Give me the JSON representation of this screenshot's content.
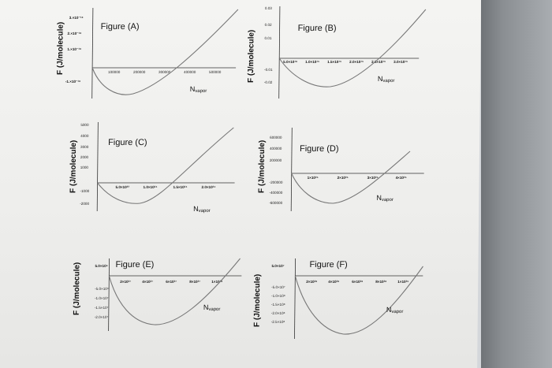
{
  "y_axis_label": "F (J/molecule)",
  "x_axis_label_main": "N",
  "x_axis_label_sub": "vapor",
  "panels": [
    {
      "title": "Figure (A)",
      "y_ticks": [
        "3.×10⁻¹⁸",
        "2.×10⁻¹⁸",
        "1.×10⁻¹⁸",
        "-1.×10⁻¹⁸"
      ],
      "x_ticks": [
        "100000",
        "200000",
        "300000",
        "400000",
        "500000"
      ]
    },
    {
      "title": "Figure (B)",
      "y_ticks": [
        "0.03",
        "0.02",
        "0.01",
        "-0.01",
        "-0.02"
      ],
      "x_ticks": [
        "5.0×10¹⁸",
        "1.0×10¹⁹",
        "1.5×10¹⁹",
        "2.0×10¹⁹",
        "2.5×10¹⁹",
        "3.0×10¹⁹"
      ]
    },
    {
      "title": "Figure (C)",
      "y_ticks": [
        "5000",
        "4000",
        "3000",
        "2000",
        "1000",
        "-1000",
        "-2000"
      ],
      "x_ticks": [
        "5.0×10²³",
        "1.0×10²⁴",
        "1.5×10²⁴",
        "2.0×10²⁴"
      ]
    },
    {
      "title": "Figure (D)",
      "y_ticks": [
        "600000",
        "400000",
        "200000",
        "-200000",
        "-400000",
        "-600000"
      ],
      "x_ticks": [
        "1×10²⁶",
        "2×10²⁶",
        "3×10²⁶",
        "4×10²⁶"
      ]
    },
    {
      "title": "Figure (E)",
      "y_ticks": [
        "5.0×10⁶",
        "-5.0×10⁶",
        "-1.0×10⁷",
        "-1.5×10⁷",
        "-2.0×10⁷"
      ],
      "x_ticks": [
        "2×10²⁷",
        "4×10²⁷",
        "6×10²⁷",
        "8×10²⁷",
        "1×10²⁸"
      ]
    },
    {
      "title": "Figure (F)",
      "y_ticks": [
        "5.0×10⁷",
        "-5.0×10⁷",
        "-1.0×10⁸",
        "-1.5×10⁸",
        "-2.0×10⁸",
        "-2.5×10⁸"
      ],
      "x_ticks": [
        "2×10²⁸",
        "4×10²⁸",
        "6×10²⁸",
        "8×10²⁸",
        "1×10²⁹"
      ]
    }
  ]
}
